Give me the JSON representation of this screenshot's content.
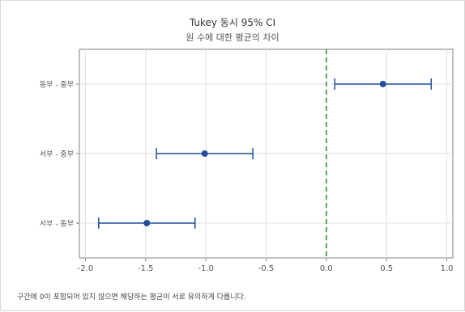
{
  "title": "Tukey 동시 95% CI",
  "subtitle": "원 수에 대한 평균의 차이",
  "footnote": "구간에 0이 포함되어 있지 않으면 해당하는 평균이 서로 유의하게 다릅니다.",
  "chart_data": {
    "type": "interval",
    "orientation": "horizontal",
    "categories": [
      "동부 - 중부",
      "서부 - 중부",
      "서부 - 동부"
    ],
    "estimates": [
      0.47,
      -1.01,
      -1.49
    ],
    "lower": [
      0.07,
      -1.41,
      -1.89
    ],
    "upper": [
      0.87,
      -0.61,
      -1.09
    ],
    "xlim": [
      -2.05,
      1.05
    ],
    "xticks": [
      -2.0,
      -1.5,
      -1.0,
      -0.5,
      0.0,
      0.5,
      1.0
    ],
    "xtick_labels": [
      "-2.0",
      "-1.5",
      "-1.0",
      "-0.5",
      "0.0",
      "0.5",
      "1.0"
    ],
    "reference_line": 0.0,
    "grid": true,
    "colors": {
      "interval": "#1f4e9a",
      "reference": "#2e8b2e",
      "grid": "#e0e0e0",
      "axis": "#7f7f7f"
    }
  }
}
